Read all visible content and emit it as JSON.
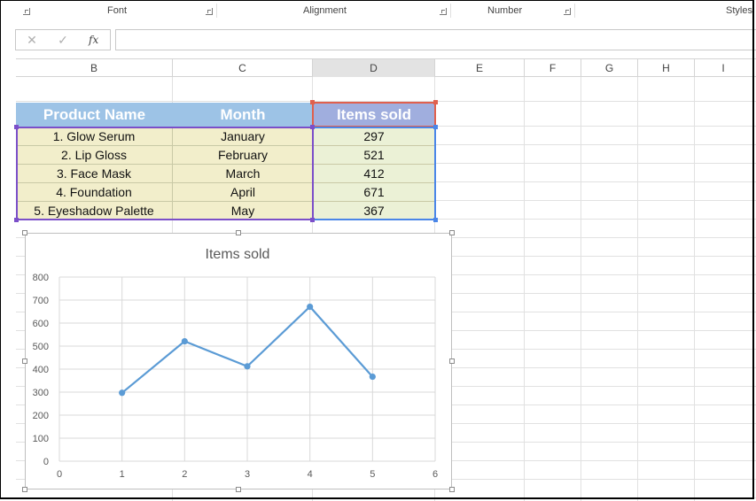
{
  "ribbon": {
    "groups": [
      "Font",
      "Alignment",
      "Number",
      "Styles"
    ]
  },
  "formula_bar": {
    "cancel": "✕",
    "enter": "✓",
    "fx": "fx",
    "value": ""
  },
  "columns": [
    "B",
    "C",
    "D",
    "E",
    "F",
    "G",
    "H",
    "I"
  ],
  "table": {
    "headers": [
      "Product Name",
      "Month",
      "Items sold"
    ],
    "rows": [
      [
        "1. Glow Serum",
        "January",
        "297"
      ],
      [
        "2. Lip Gloss",
        "February",
        "521"
      ],
      [
        "3. Face Mask",
        "March",
        "412"
      ],
      [
        "4. Foundation",
        "April",
        "671"
      ],
      [
        "5. Eyeshadow Palette",
        "May",
        "367"
      ]
    ]
  },
  "colors": {
    "header_blue": "#9dc3e6",
    "header_selected": "#a0aede",
    "cell_yellow": "#f2eecb",
    "cell_green": "#ebf1d6",
    "series_line": "#5b9bd5",
    "sel_purple": "#7b4fc9",
    "sel_red": "#e0604e",
    "sel_blue": "#4a86e8"
  },
  "chart_data": {
    "type": "scatter",
    "title": "Items sold",
    "x": [
      1,
      2,
      3,
      4,
      5
    ],
    "series": [
      {
        "values": [
          297,
          521,
          412,
          671,
          367
        ]
      }
    ],
    "xlim": [
      0,
      6
    ],
    "ylim": [
      0,
      800
    ],
    "xticks": [
      "0",
      "1",
      "2",
      "3",
      "4",
      "5",
      "6"
    ],
    "yticks": [
      "0",
      "100",
      "200",
      "300",
      "400",
      "500",
      "600",
      "700",
      "800"
    ],
    "lines": true,
    "grid": true,
    "legend": "none"
  }
}
